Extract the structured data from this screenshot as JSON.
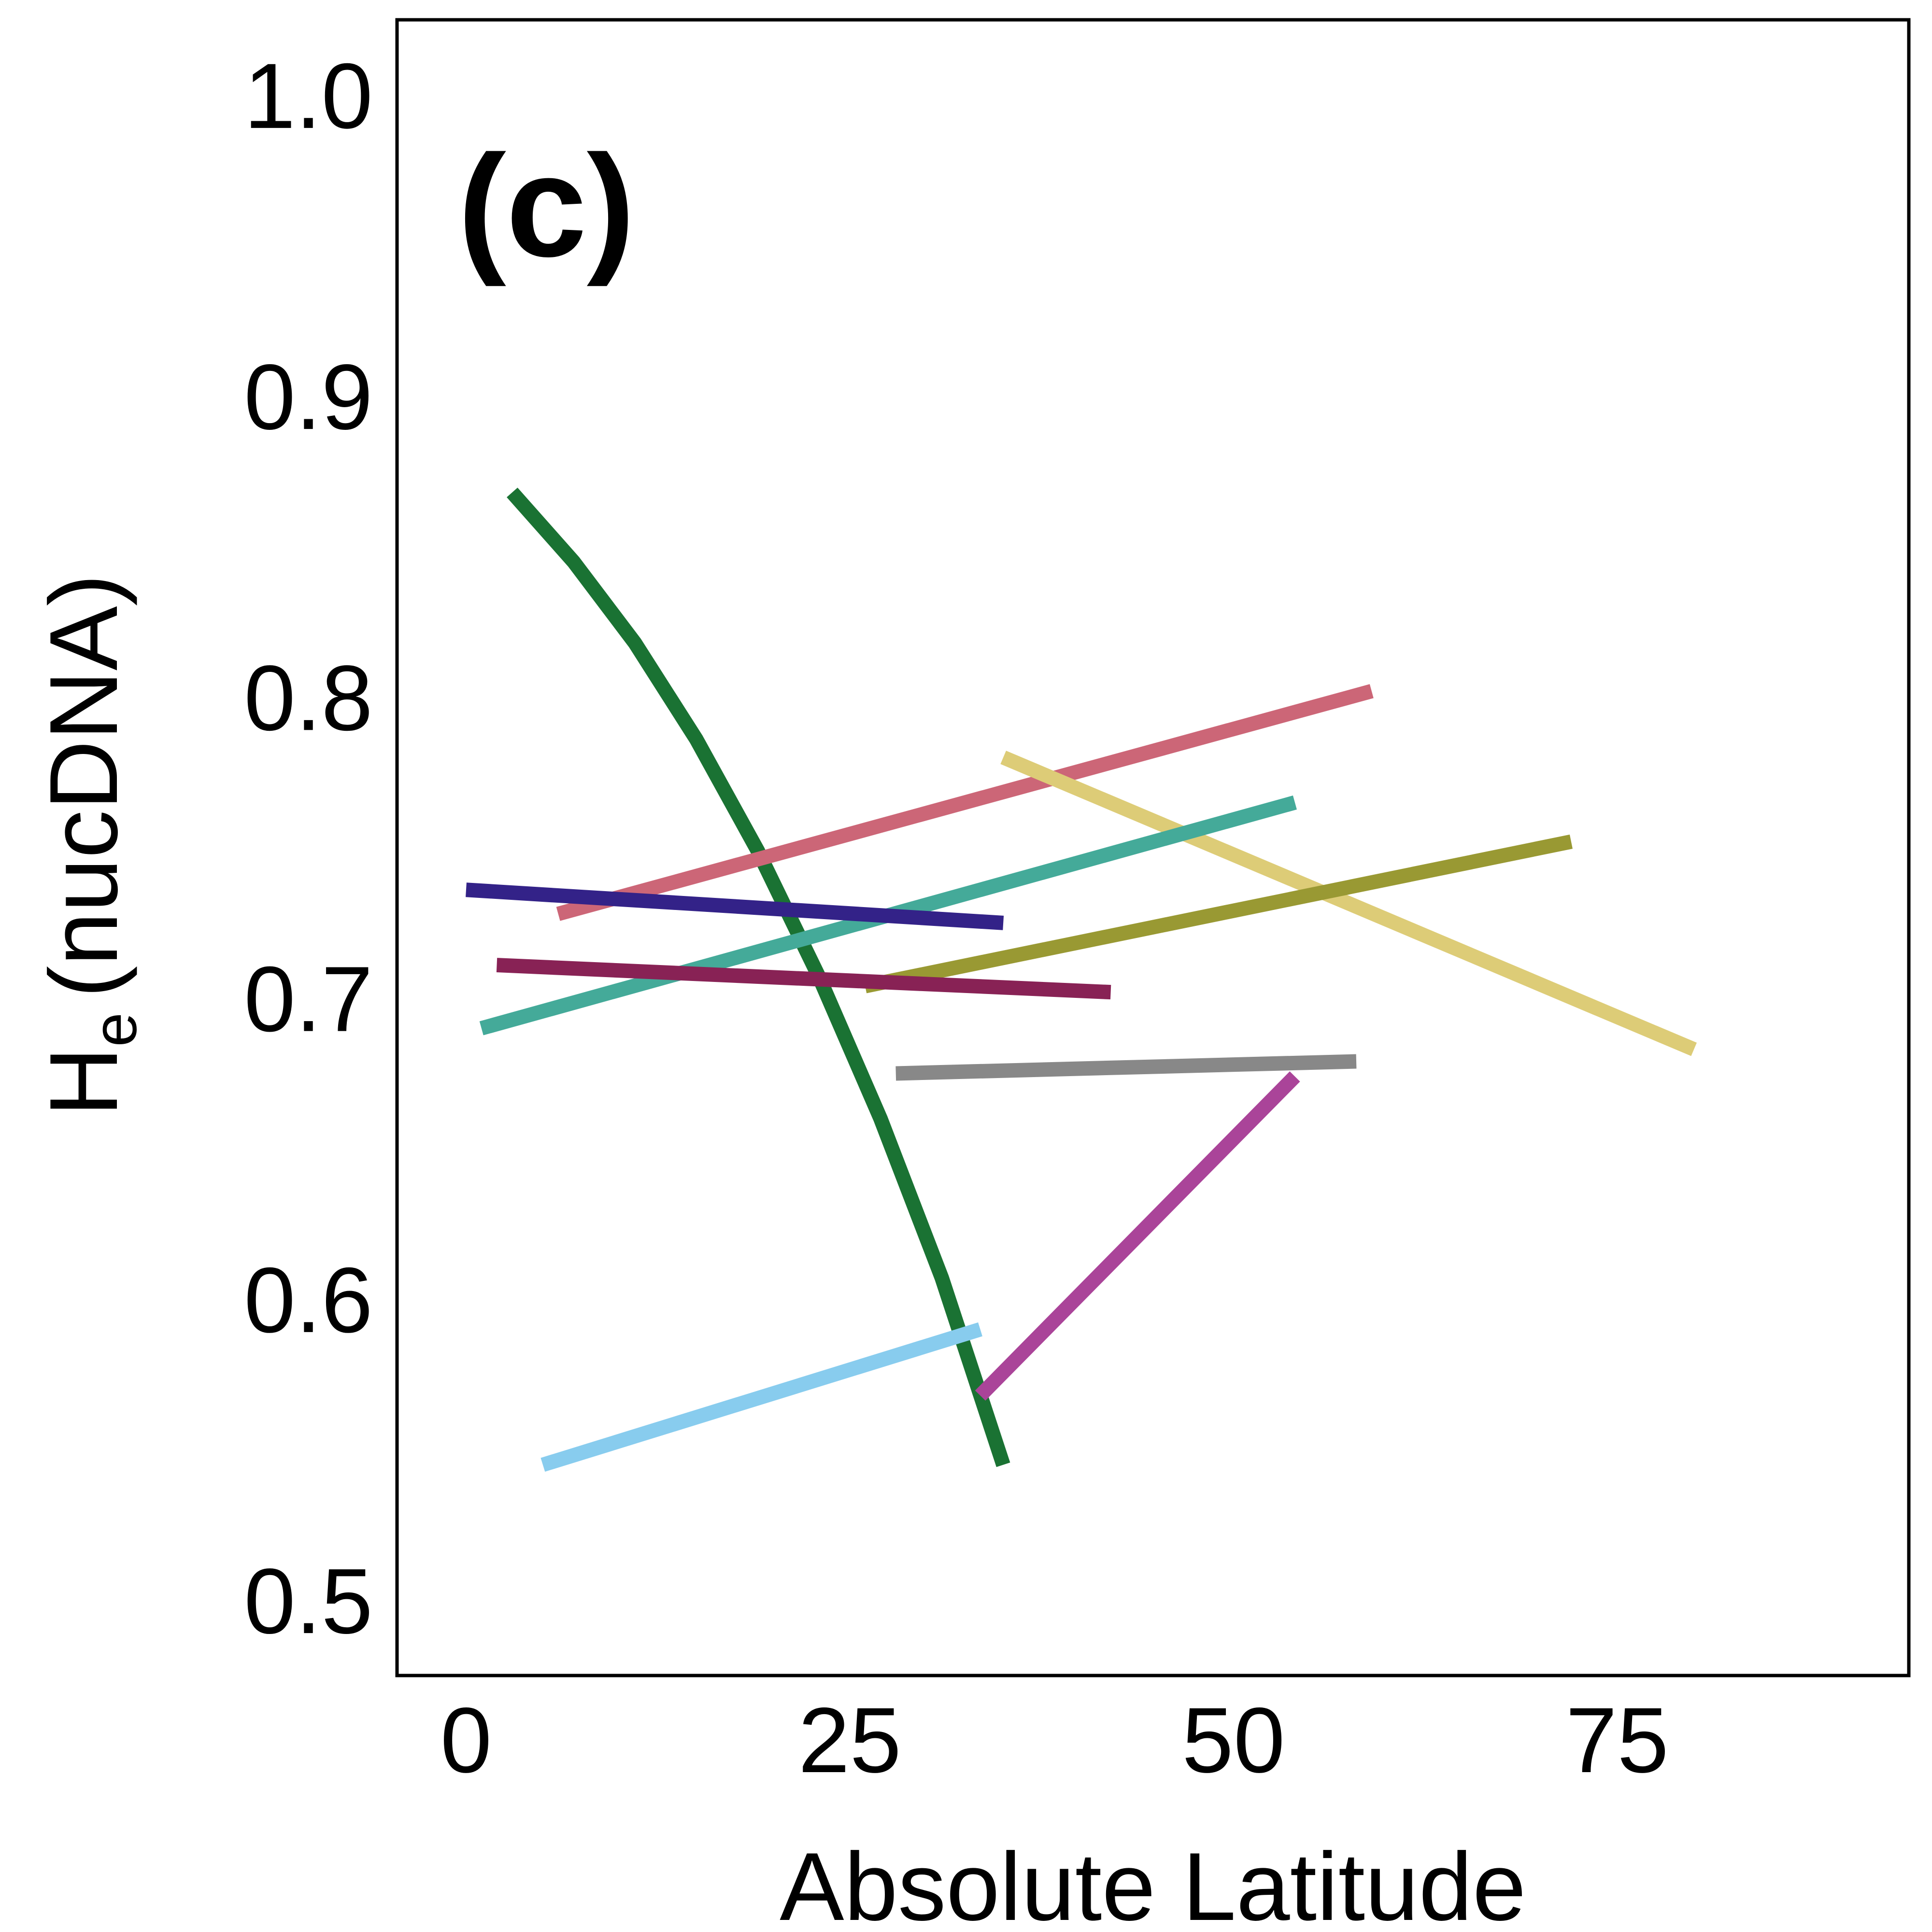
{
  "chart_data": {
    "type": "line",
    "panel_label": "(c)",
    "xlabel": "Absolute Latitude",
    "ylabel_main": "H",
    "ylabel_sub": "e",
    "ylabel_rest": "(nucDNA)",
    "xlim": [
      -4.5,
      94
    ],
    "ylim": [
      0.475,
      1.025
    ],
    "xticks": [
      0,
      25,
      50,
      75
    ],
    "xtick_labels": [
      "0",
      "25",
      "50",
      "75"
    ],
    "yticks": [
      0.5,
      0.6,
      0.7,
      0.8,
      0.9,
      1.0
    ],
    "ytick_labels": [
      "0.5",
      "0.6",
      "0.7",
      "0.8",
      "0.9",
      "1.0"
    ],
    "grid": false,
    "series": [
      {
        "color": "#1a7233",
        "x": [
          3,
          7,
          11,
          15,
          19,
          23,
          27,
          31,
          35
        ],
        "y": [
          0.868,
          0.845,
          0.818,
          0.786,
          0.749,
          0.707,
          0.66,
          0.607,
          0.545
        ]
      },
      {
        "color": "#cc6677",
        "x": [
          6,
          59
        ],
        "y": [
          0.728,
          0.802
        ]
      },
      {
        "color": "#ddcc77",
        "x": [
          35,
          80
        ],
        "y": [
          0.78,
          0.683
        ]
      },
      {
        "color": "#44aa99",
        "x": [
          1,
          54
        ],
        "y": [
          0.69,
          0.765
        ]
      },
      {
        "color": "#999933",
        "x": [
          26,
          72
        ],
        "y": [
          0.704,
          0.752
        ]
      },
      {
        "color": "#332288",
        "x": [
          0,
          35
        ],
        "y": [
          0.736,
          0.725
        ]
      },
      {
        "color": "#882255",
        "x": [
          2,
          42
        ],
        "y": [
          0.711,
          0.702
        ]
      },
      {
        "color": "#888888",
        "x": [
          28,
          58
        ],
        "y": [
          0.675,
          0.679
        ]
      },
      {
        "color": "#aa4499",
        "x": [
          33.5,
          54
        ],
        "y": [
          0.568,
          0.674
        ]
      },
      {
        "color": "#88ccee",
        "x": [
          5,
          33.5
        ],
        "y": [
          0.545,
          0.59
        ]
      }
    ]
  }
}
